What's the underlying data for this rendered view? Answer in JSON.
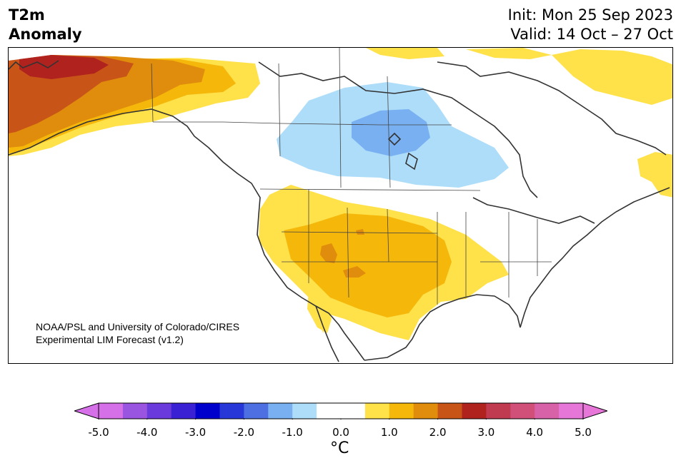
{
  "title": {
    "variable_line1": "T2m",
    "variable_line2": "Anomaly",
    "init": "Init: Mon 25 Sep 2023",
    "valid": "Valid: 14 Oct – 27 Oct"
  },
  "credit": {
    "line1": "NOAA/PSL and University of Colorado/CIRES",
    "line2": "Experimental LIM Forecast (v1.2)"
  },
  "colorbar": {
    "ticks": [
      "-5.0",
      "-4.0",
      "-3.0",
      "-2.0",
      "-1.0",
      "0.0",
      "1.0",
      "2.0",
      "3.0",
      "4.0",
      "5.0"
    ],
    "unit": "°C",
    "colors": [
      "#d670e8",
      "#9a55e0",
      "#6a3adc",
      "#3a22d4",
      "#0000cc",
      "#2838d8",
      "#4e6fe2",
      "#78b0f2",
      "#aeddfa",
      "#ffffff",
      "#ffffff",
      "#ffe14a",
      "#f5b80a",
      "#e08c0c",
      "#c85418",
      "#b0221e",
      "#c03a50",
      "#d0507a",
      "#d862a8",
      "#e676d8"
    ],
    "extend": "both"
  },
  "map": {
    "region": "North America",
    "colors": {
      "yellow": "#ffe14a",
      "gold": "#f5b80a",
      "orange": "#e08c0c",
      "dark_orange": "#c85418",
      "red": "#b0221e",
      "light_blue": "#aeddfa",
      "blue": "#78b0f2",
      "coast": "#333333"
    }
  }
}
